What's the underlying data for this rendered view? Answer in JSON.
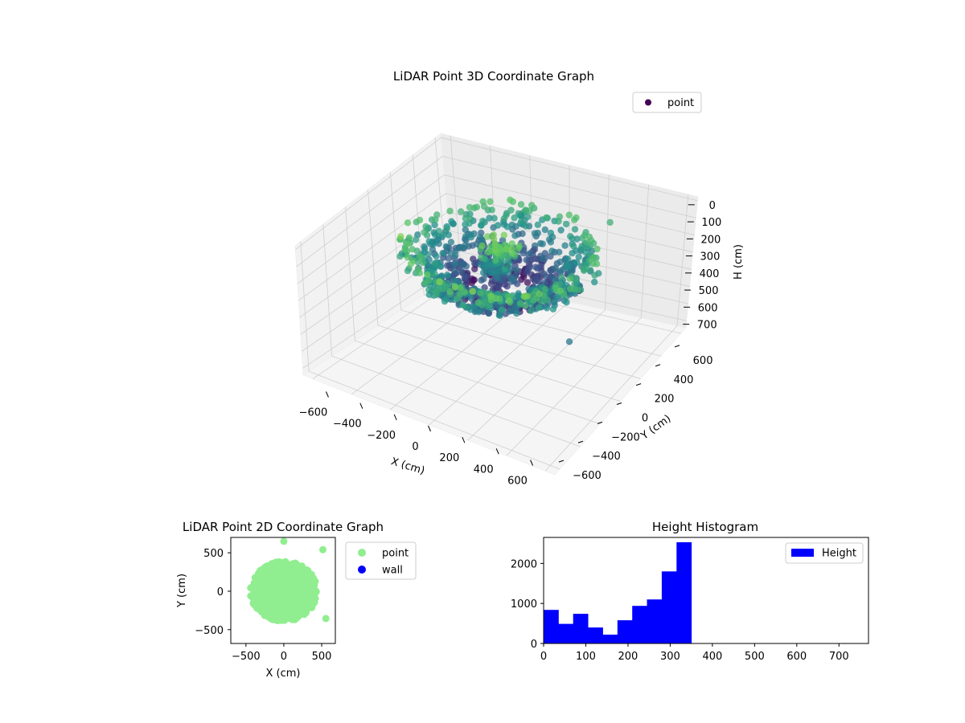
{
  "chart_data": [
    {
      "type": "scatter3d",
      "title": "LiDAR Point 3D Coordinate Graph",
      "xlabel": "X (cm)",
      "ylabel": "Y (cm)",
      "zlabel": "H (cm)",
      "xticks": [
        "−600",
        "−400",
        "−200",
        "0",
        "200",
        "400",
        "600"
      ],
      "yticks": [
        "−600",
        "−400",
        "−200",
        "0",
        "200",
        "400",
        "600"
      ],
      "zticks": [
        "0",
        "100",
        "200",
        "300",
        "400",
        "500",
        "600",
        "700"
      ],
      "xlim": [
        -650,
        650
      ],
      "ylim": [
        -650,
        650
      ],
      "zlim": [
        0,
        760
      ],
      "z_inverted": true,
      "colormap": "viridis",
      "legend": {
        "label": "point",
        "placement": "top-right",
        "color": "#440154"
      },
      "series": [
        {
          "name": "point",
          "description_points": [
            {
              "x": 0,
              "y": 0,
              "h": 350
            },
            {
              "x": 300,
              "y": 480,
              "h": 140
            },
            {
              "x": 530,
              "y": -350,
              "h": 230
            },
            {
              "x": 60,
              "y": 640,
              "h": 680
            }
          ]
        }
      ]
    },
    {
      "type": "scatter",
      "title": "LiDAR Point 2D Coordinate Graph",
      "xlabel": "X (cm)",
      "ylabel": "Y (cm)",
      "xticks": [
        "−500",
        "0",
        "500"
      ],
      "yticks": [
        "−500",
        "0",
        "500"
      ],
      "xlim": [
        -700,
        680
      ],
      "ylim": [
        -680,
        700
      ],
      "legend": {
        "placement": "outside-right"
      },
      "series": [
        {
          "name": "point",
          "color": "#90ee90",
          "cloud": {
            "center": [
              0,
              0
            ],
            "rx": 430,
            "ry": 380
          },
          "points": [
            {
              "x": 0,
              "y": 650
            },
            {
              "x": 515,
              "y": 540
            },
            {
              "x": 555,
              "y": -355
            }
          ]
        },
        {
          "name": "wall",
          "color": "#0000ff",
          "points": []
        }
      ]
    },
    {
      "type": "bar",
      "title": "Height Histogram",
      "xlabel": "",
      "ylabel": "",
      "xticks": [
        "0",
        "100",
        "200",
        "300",
        "400",
        "500",
        "600",
        "700"
      ],
      "yticks": [
        "0",
        "1000",
        "2000"
      ],
      "xlim": [
        0,
        770
      ],
      "ylim": [
        0,
        2650
      ],
      "bin_width": 35,
      "bins_start": [
        0,
        35,
        70,
        105,
        140,
        175,
        210,
        245,
        280,
        315
      ],
      "series": [
        {
          "name": "Height",
          "color": "#0000ff",
          "values": [
            840,
            490,
            740,
            400,
            220,
            580,
            940,
            1100,
            1800,
            2530
          ]
        }
      ],
      "legend": {
        "placement": "top-right"
      }
    }
  ]
}
